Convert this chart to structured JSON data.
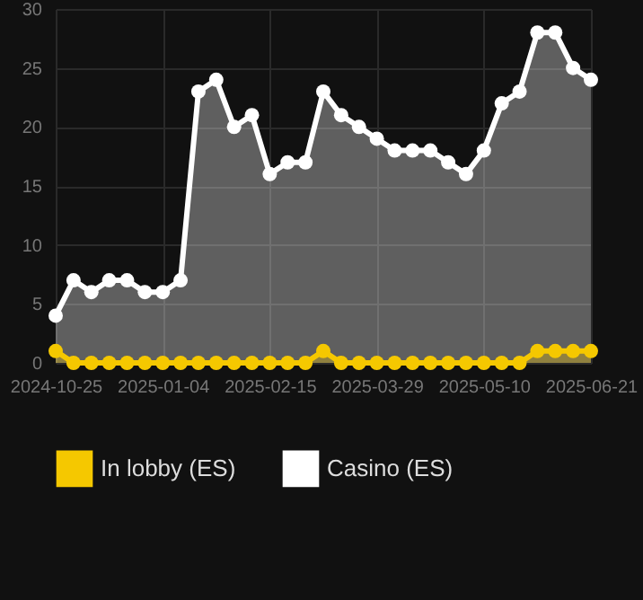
{
  "chart_data": {
    "type": "area",
    "categories": [
      "2024-10-25",
      null,
      null,
      null,
      null,
      null,
      "2025-01-04",
      null,
      null,
      null,
      null,
      null,
      "2025-02-15",
      null,
      null,
      null,
      null,
      null,
      "2025-03-29",
      null,
      null,
      null,
      null,
      null,
      "2025-05-10",
      null,
      null,
      null,
      null,
      null,
      "2025-06-21"
    ],
    "series": [
      {
        "name": "In lobby (ES)",
        "color": "#f5c800",
        "values": [
          1,
          0,
          0,
          0,
          0,
          0,
          0,
          0,
          0,
          0,
          0,
          0,
          0,
          0,
          0,
          1,
          0,
          0,
          0,
          0,
          0,
          0,
          0,
          0,
          0,
          0,
          0,
          1,
          1,
          1,
          1
        ]
      },
      {
        "name": "Casino (ES)",
        "color": "#ffffff",
        "values": [
          4,
          7,
          6,
          7,
          7,
          6,
          6,
          7,
          23,
          24,
          20,
          21,
          16,
          17,
          17,
          23,
          21,
          20,
          19,
          18,
          18,
          18,
          17,
          16,
          18,
          22,
          23,
          28,
          28,
          25,
          24
        ]
      }
    ],
    "ylim": [
      0,
      30
    ],
    "yticks": [
      0,
      5,
      10,
      15,
      20,
      25,
      30
    ],
    "grid": true,
    "legend": "bottom",
    "marker": "circle",
    "line_style": "solid"
  }
}
